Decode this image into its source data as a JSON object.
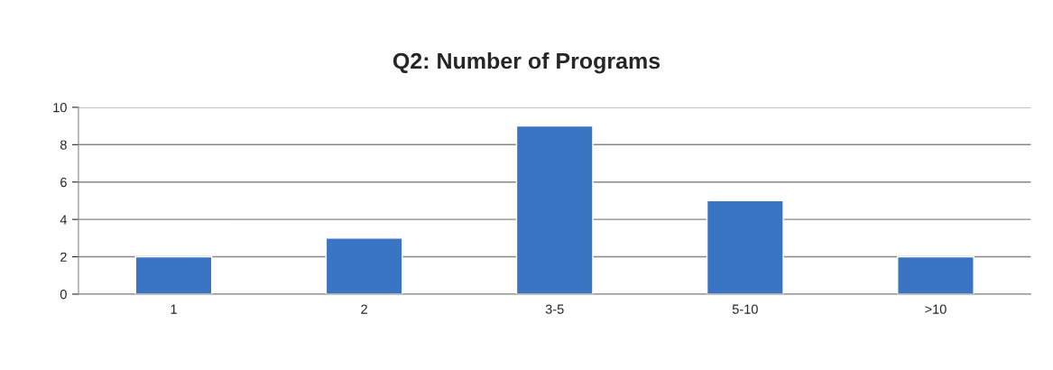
{
  "chart_data": {
    "type": "bar",
    "title": "Q2: Number of Programs",
    "categories": [
      "1",
      "2",
      "3-5",
      "5-10",
      ">10"
    ],
    "values": [
      2,
      3,
      9,
      5,
      2
    ],
    "color": "#3a75c4",
    "ylim": [
      0,
      10
    ],
    "yticks": [
      0,
      2,
      4,
      6,
      8,
      10
    ],
    "grid": "y",
    "legend": false
  }
}
